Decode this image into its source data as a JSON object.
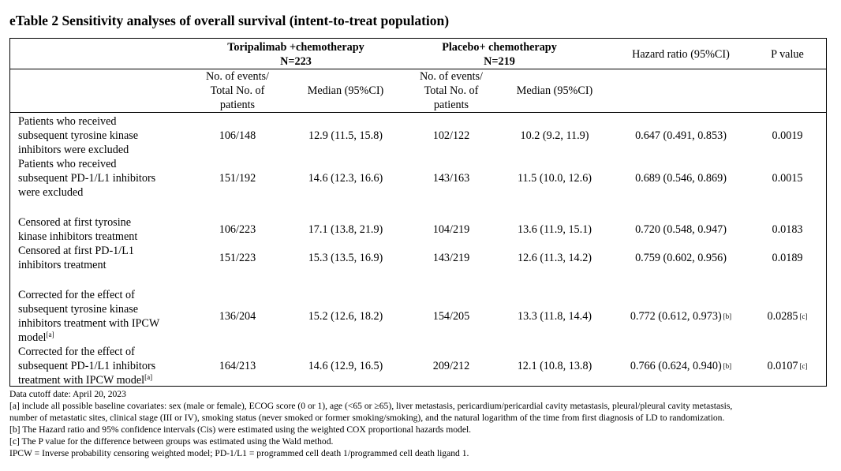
{
  "title": "eTable 2 Sensitivity analyses of overall survival (intent-to-treat population)",
  "header": {
    "group1": {
      "name": "Toripalimab +chemotherapy",
      "n": "N=223"
    },
    "group2": {
      "name": "Placebo+ chemotherapy",
      "n": "N=219"
    },
    "hazard_ratio": "Hazard ratio (95%CI)",
    "p_value": "P value",
    "sub": {
      "events_line1": "No. of events/",
      "events_line2": "Total No. of",
      "events_line3": "patients",
      "median": "Median (95%CI)"
    }
  },
  "rows": [
    {
      "label": [
        "Patients who received",
        "subsequent tyrosine kinase",
        "inhibitors were excluded"
      ],
      "label_sup": "",
      "g1_events": "106/148",
      "g1_median": "12.9 (11.5, 15.8)",
      "g2_events": "102/122",
      "g2_median": "10.2 (9.2, 11.9)",
      "hr": "0.647 (0.491, 0.853)",
      "hr_sup": "",
      "p": "0.0019",
      "p_sup": ""
    },
    {
      "label": [
        "Patients who received",
        "subsequent PD-1/L1 inhibitors",
        "were excluded"
      ],
      "label_sup": "",
      "g1_events": "151/192",
      "g1_median": "14.6 (12.3, 16.6)",
      "g2_events": "143/163",
      "g2_median": "11.5 (10.0, 12.6)",
      "hr": "0.689 (0.546, 0.869)",
      "hr_sup": "",
      "p": "0.0015",
      "p_sup": ""
    },
    {
      "label": [
        "Censored at first tyrosine",
        "kinase inhibitors treatment"
      ],
      "label_sup": "",
      "g1_events": "106/223",
      "g1_median": "17.1 (13.8, 21.9)",
      "g2_events": "104/219",
      "g2_median": "13.6 (11.9, 15.1)",
      "hr": "0.720 (0.548, 0.947)",
      "hr_sup": "",
      "p": "0.0183",
      "p_sup": ""
    },
    {
      "label": [
        "Censored at first PD-1/L1",
        "inhibitors treatment"
      ],
      "label_sup": "",
      "g1_events": "151/223",
      "g1_median": "15.3 (13.5, 16.9)",
      "g2_events": "143/219",
      "g2_median": "12.6 (11.3, 14.2)",
      "hr": "0.759 (0.602, 0.956)",
      "hr_sup": "",
      "p": "0.0189",
      "p_sup": ""
    },
    {
      "label": [
        "Corrected for the effect of",
        "subsequent tyrosine kinase",
        "inhibitors treatment with IPCW",
        "model"
      ],
      "label_sup": "[a]",
      "g1_events": "136/204",
      "g1_median": "15.2 (12.6, 18.2)",
      "g2_events": "154/205",
      "g2_median": "13.3 (11.8, 14.4)",
      "hr": "0.772 (0.612, 0.973)",
      "hr_sup": "[b]",
      "p": "0.0285",
      "p_sup": "[c]"
    },
    {
      "label": [
        "Corrected for the effect of",
        "subsequent PD-1/L1 inhibitors",
        "treatment with IPCW model"
      ],
      "label_sup": "[a]",
      "g1_events": "164/213",
      "g1_median": "14.6 (12.9, 16.5)",
      "g2_events": "209/212",
      "g2_median": "12.1 (10.8, 13.8)",
      "hr": "0.766 (0.624, 0.940)",
      "hr_sup": "[b]",
      "p": "0.0107",
      "p_sup": "[c]"
    }
  ],
  "footnotes": [
    "Data cutoff date: April 20, 2023",
    "[a] include all possible baseline covariates: sex (male or female), ECOG score (0 or 1), age (<65 or ≥65), liver metastasis, pericardium/pericardial cavity metastasis, pleural/pleural cavity metastasis,",
    "number of metastatic sites, clinical stage (III or IV), smoking status (never smoked or former smoking/smoking), and the natural logarithm of the time from first diagnosis of LD to randomization.",
    "[b] The Hazard ratio and 95% confidence intervals (Cis) were estimated using the weighted COX proportional hazards model.",
    "[c] The P value for the difference between groups was estimated using the Wald method.",
    "IPCW = Inverse probability censoring weighted model; PD-1/L1 = programmed cell death 1/programmed cell death ligand 1."
  ]
}
